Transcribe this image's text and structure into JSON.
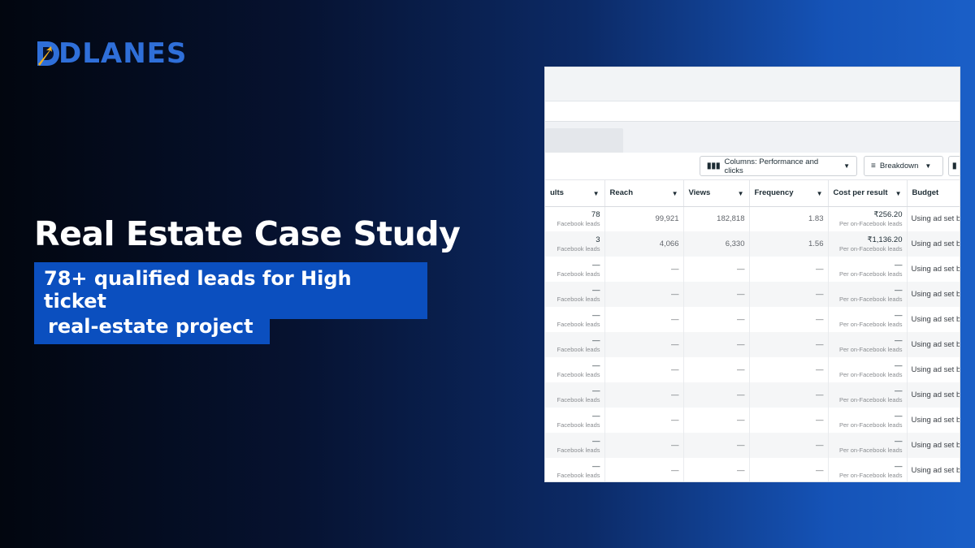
{
  "brand": {
    "name": "DLANES",
    "accent": "#2f6fd9",
    "logo_icon": "arrow-mark-icon"
  },
  "headline": "Real Estate Case Study",
  "tags": [
    "78+ qualified leads for High ticket",
    "real-estate project"
  ],
  "screenshot": {
    "toolbar": {
      "columns_label": "Columns: Performance and clicks",
      "breakdown_label": "Breakdown"
    },
    "columns": [
      "ults",
      "Reach",
      "Views",
      "Frequency",
      "Cost per result",
      "Budget"
    ],
    "rows": [
      {
        "results": "78",
        "results_sub": "Facebook leads",
        "reach": "99,921",
        "views": "182,818",
        "frequency": "1.83",
        "cpr": "₹256.20",
        "cpr_sub": "Per on-Facebook leads",
        "budget": "Using ad set b"
      },
      {
        "results": "3",
        "results_sub": "Facebook leads",
        "reach": "4,066",
        "views": "6,330",
        "frequency": "1.56",
        "cpr": "₹1,136.20",
        "cpr_sub": "Per on-Facebook leads",
        "budget": "Using ad set b"
      },
      {
        "results": "—",
        "results_sub": "Facebook leads",
        "reach": "—",
        "views": "—",
        "frequency": "—",
        "cpr": "—",
        "cpr_sub": "Per on-Facebook leads",
        "budget": "Using ad set b"
      },
      {
        "results": "—",
        "results_sub": "Facebook leads",
        "reach": "—",
        "views": "—",
        "frequency": "—",
        "cpr": "—",
        "cpr_sub": "Per on-Facebook leads",
        "budget": "Using ad set b"
      },
      {
        "results": "—",
        "results_sub": "Facebook leads",
        "reach": "—",
        "views": "—",
        "frequency": "—",
        "cpr": "—",
        "cpr_sub": "Per on-Facebook leads",
        "budget": "Using ad set b"
      },
      {
        "results": "—",
        "results_sub": "Facebook leads",
        "reach": "—",
        "views": "—",
        "frequency": "—",
        "cpr": "—",
        "cpr_sub": "Per on-Facebook leads",
        "budget": "Using ad set b"
      },
      {
        "results": "—",
        "results_sub": "Facebook leads",
        "reach": "—",
        "views": "—",
        "frequency": "—",
        "cpr": "—",
        "cpr_sub": "Per on-Facebook leads",
        "budget": "Using ad set b"
      },
      {
        "results": "—",
        "results_sub": "Facebook leads",
        "reach": "—",
        "views": "—",
        "frequency": "—",
        "cpr": "—",
        "cpr_sub": "Per on-Facebook leads",
        "budget": "Using ad set b"
      },
      {
        "results": "—",
        "results_sub": "Facebook leads",
        "reach": "—",
        "views": "—",
        "frequency": "—",
        "cpr": "—",
        "cpr_sub": "Per on-Facebook leads",
        "budget": "Using ad set b"
      },
      {
        "results": "—",
        "results_sub": "Facebook leads",
        "reach": "—",
        "views": "—",
        "frequency": "—",
        "cpr": "—",
        "cpr_sub": "Per on-Facebook leads",
        "budget": "Using ad set b"
      },
      {
        "results": "—",
        "results_sub": "Facebook leads",
        "reach": "—",
        "views": "—",
        "frequency": "—",
        "cpr": "—",
        "cpr_sub": "Per on-Facebook leads",
        "budget": "Using ad set b"
      }
    ]
  }
}
